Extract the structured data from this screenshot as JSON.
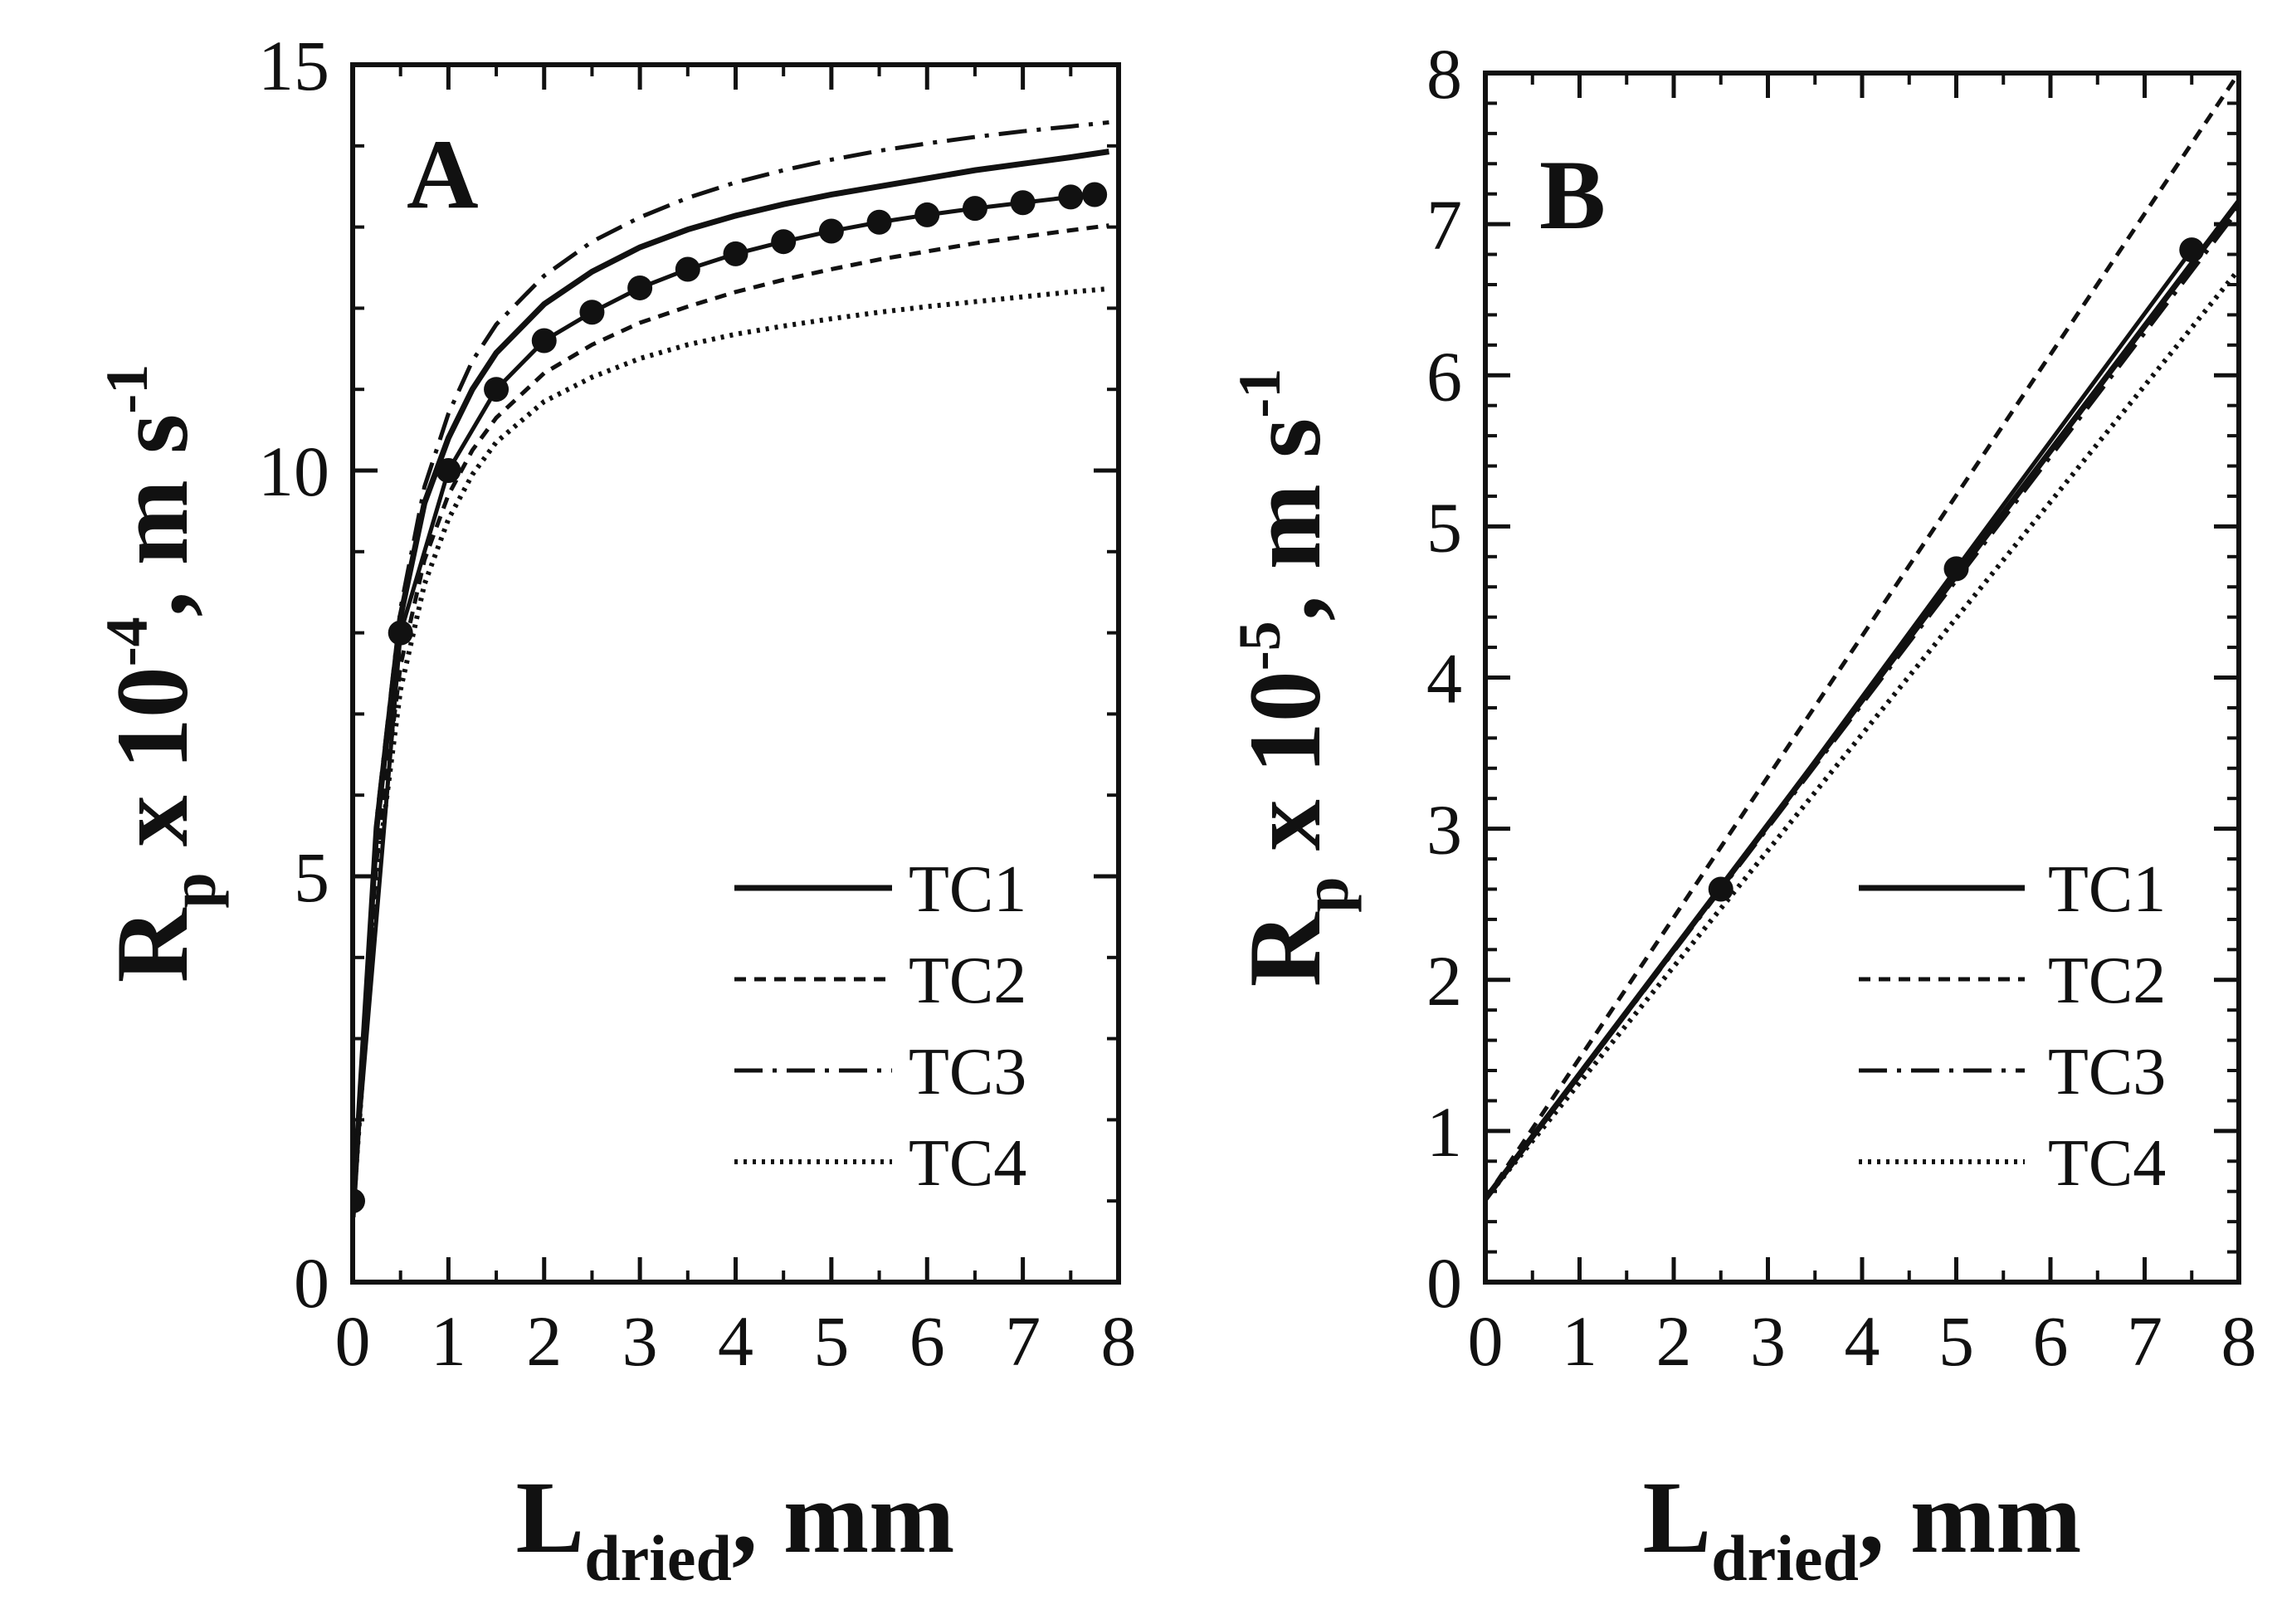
{
  "chart_data": [
    {
      "type": "line",
      "panel": "A",
      "xlabel": {
        "main": "L",
        "sub": "dried",
        "rest": ", mm"
      },
      "ylabel": {
        "main": "R",
        "sub": "p",
        "mid": " x 10",
        "sup": "-4",
        "rest": ", m s",
        "sup2": "-1"
      },
      "xlim": [
        0,
        8
      ],
      "ylim": [
        0,
        15
      ],
      "xticks": [
        0,
        1,
        2,
        3,
        4,
        5,
        6,
        7,
        8
      ],
      "yticks": [
        0,
        5,
        10,
        15
      ],
      "legend_position": "bottom-right",
      "series": [
        {
          "name": "TC1",
          "style": "solid",
          "x": [
            0,
            0.25,
            0.5,
            0.75,
            1,
            1.25,
            1.5,
            2,
            2.5,
            3,
            3.5,
            4,
            4.5,
            5,
            5.5,
            6,
            6.5,
            7,
            7.5,
            7.9
          ],
          "y": [
            0.8,
            5.6,
            8.2,
            9.6,
            10.4,
            11.0,
            11.45,
            12.05,
            12.45,
            12.75,
            12.97,
            13.14,
            13.28,
            13.4,
            13.5,
            13.6,
            13.7,
            13.78,
            13.86,
            13.93
          ]
        },
        {
          "name": "TC2",
          "style": "dashed",
          "x": [
            0,
            0.25,
            0.5,
            0.75,
            1,
            1.25,
            1.5,
            2,
            2.5,
            3,
            3.5,
            4,
            4.5,
            5,
            5.5,
            6,
            6.5,
            7,
            7.5,
            7.9
          ],
          "y": [
            0.8,
            5.2,
            7.6,
            8.9,
            9.7,
            10.25,
            10.65,
            11.2,
            11.55,
            11.82,
            12.02,
            12.2,
            12.35,
            12.48,
            12.6,
            12.7,
            12.8,
            12.88,
            12.96,
            13.02
          ]
        },
        {
          "name": "TC3",
          "style": "dashdot",
          "x": [
            0,
            0.25,
            0.5,
            0.75,
            1,
            1.25,
            1.5,
            2,
            2.5,
            3,
            3.5,
            4,
            4.5,
            5,
            5.5,
            6,
            6.5,
            7,
            7.5,
            7.9
          ],
          "y": [
            0.8,
            5.7,
            8.3,
            9.8,
            10.7,
            11.35,
            11.8,
            12.4,
            12.82,
            13.12,
            13.36,
            13.55,
            13.7,
            13.83,
            13.94,
            14.03,
            14.11,
            14.18,
            14.24,
            14.29
          ]
        },
        {
          "name": "TC4",
          "style": "dotted",
          "x": [
            0,
            0.25,
            0.5,
            0.75,
            1,
            1.25,
            1.5,
            2,
            2.5,
            3,
            3.5,
            4,
            4.5,
            5,
            5.5,
            6,
            6.5,
            7,
            7.5,
            7.9
          ],
          "y": [
            0.8,
            5.0,
            7.3,
            8.6,
            9.4,
            9.95,
            10.35,
            10.85,
            11.15,
            11.38,
            11.55,
            11.68,
            11.78,
            11.87,
            11.95,
            12.02,
            12.08,
            12.14,
            12.2,
            12.24
          ]
        },
        {
          "name": "",
          "style": "markers",
          "x": [
            0,
            0.5,
            1,
            1.5,
            2,
            2.5,
            3,
            3.5,
            4,
            4.5,
            5,
            5.5,
            6,
            6.5,
            7,
            7.5,
            7.75
          ],
          "y": [
            1.0,
            8.0,
            10.0,
            11.0,
            11.6,
            11.95,
            12.25,
            12.48,
            12.67,
            12.82,
            12.95,
            13.06,
            13.15,
            13.23,
            13.3,
            13.37,
            13.4
          ]
        }
      ]
    },
    {
      "type": "line",
      "panel": "B",
      "xlabel": {
        "main": "L",
        "sub": "dried",
        "rest": ", mm"
      },
      "ylabel": {
        "main": "R",
        "sub": "p",
        "mid": " x 10",
        "sup": "-5",
        "rest": ", m s",
        "sup2": "-1"
      },
      "xlim": [
        0,
        8
      ],
      "ylim": [
        0,
        8
      ],
      "xticks": [
        0,
        1,
        2,
        3,
        4,
        5,
        6,
        7,
        8
      ],
      "yticks": [
        0,
        1,
        2,
        3,
        4,
        5,
        6,
        7,
        8
      ],
      "legend_position": "bottom-right",
      "series": [
        {
          "name": "TC1",
          "style": "solid",
          "x": [
            0,
            8
          ],
          "y": [
            0.55,
            7.15
          ]
        },
        {
          "name": "TC2",
          "style": "dashed",
          "x": [
            0,
            8
          ],
          "y": [
            0.55,
            8.0
          ]
        },
        {
          "name": "TC3",
          "style": "dashdot",
          "x": [
            0,
            8
          ],
          "y": [
            0.55,
            7.1
          ]
        },
        {
          "name": "TC4",
          "style": "dotted",
          "x": [
            0,
            8
          ],
          "y": [
            0.55,
            6.7
          ]
        },
        {
          "name": "",
          "style": "markers",
          "x": [
            2.5,
            5,
            7.5
          ],
          "y": [
            2.6,
            4.72,
            6.83
          ]
        }
      ]
    }
  ]
}
